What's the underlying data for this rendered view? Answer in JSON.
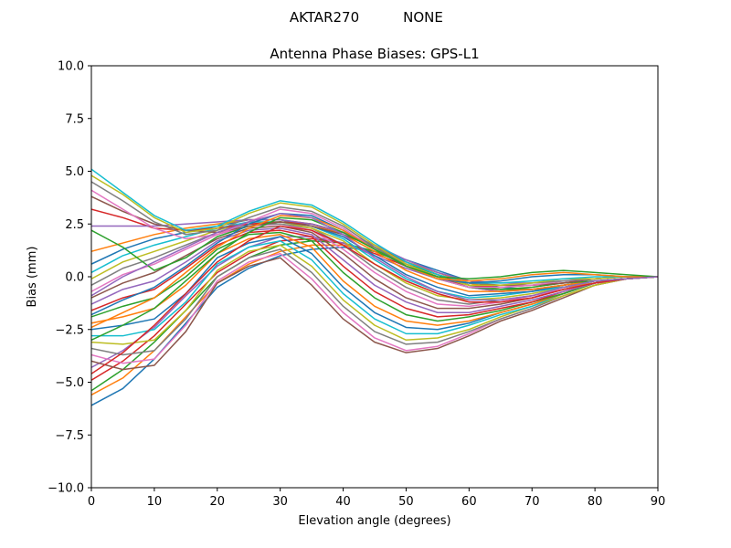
{
  "header": {
    "station": "AKTAR270",
    "radome": "NONE"
  },
  "colors": [
    "#1f77b4",
    "#ff7f0e",
    "#2ca02c",
    "#d62728",
    "#9467bd",
    "#8c564b",
    "#e377c2",
    "#7f7f7f",
    "#bcbd22",
    "#17becf"
  ],
  "chart_data": {
    "type": "line",
    "title": "Antenna Phase Biases: GPS-L1",
    "xlabel": "Elevation angle (degrees)",
    "ylabel": "Bias (mm)",
    "xlim": [
      0,
      90
    ],
    "ylim": [
      -10,
      10
    ],
    "xticks": [
      0,
      10,
      20,
      30,
      40,
      50,
      60,
      70,
      80,
      90
    ],
    "xtick_labels": [
      "0",
      "10",
      "20",
      "30",
      "40",
      "50",
      "60",
      "70",
      "80",
      "90"
    ],
    "yticks": [
      -10,
      -7.5,
      -5,
      -2.5,
      0,
      2.5,
      5,
      7.5,
      10
    ],
    "ytick_labels": [
      "−10.0",
      "−7.5",
      "−5.0",
      "−2.5",
      "0.0",
      "2.5",
      "5.0",
      "7.5",
      "10.0"
    ],
    "grid": false,
    "legend": "none",
    "x": [
      0,
      5,
      10,
      15,
      20,
      25,
      30,
      35,
      40,
      45,
      50,
      55,
      60,
      65,
      70,
      75,
      80,
      85,
      90
    ],
    "series": [
      {
        "values": [
          -6.1,
          -5.3,
          -3.9,
          -2.2,
          -0.5,
          0.4,
          1.0,
          1.3,
          1.4,
          1.2,
          0.8,
          0.3,
          -0.2,
          -0.5,
          -0.6,
          -0.5,
          -0.3,
          -0.1,
          0.0
        ]
      },
      {
        "values": [
          -5.6,
          -4.8,
          -3.5,
          -1.9,
          -0.3,
          0.6,
          1.2,
          1.5,
          1.5,
          1.2,
          0.7,
          0.2,
          -0.3,
          -0.6,
          -0.6,
          -0.5,
          -0.3,
          -0.1,
          0.0
        ]
      },
      {
        "values": [
          -5.4,
          -4.4,
          -3.1,
          -1.6,
          0.0,
          0.9,
          1.5,
          1.7,
          1.6,
          1.2,
          0.6,
          0.1,
          -0.4,
          -0.6,
          -0.6,
          -0.4,
          -0.2,
          -0.1,
          0.0
        ]
      },
      {
        "values": [
          -4.9,
          -4.0,
          -2.8,
          -1.3,
          0.2,
          1.1,
          1.7,
          1.8,
          1.6,
          1.1,
          0.5,
          0.0,
          -0.5,
          -0.7,
          -0.6,
          -0.4,
          -0.2,
          -0.1,
          0.0
        ]
      },
      {
        "values": [
          -4.3,
          -3.5,
          -2.4,
          -0.9,
          0.5,
          1.4,
          1.9,
          1.9,
          1.6,
          1.0,
          0.4,
          -0.1,
          -0.5,
          -0.7,
          -0.6,
          -0.4,
          -0.2,
          -0.1,
          0.0
        ]
      },
      {
        "values": [
          -4.0,
          -4.4,
          -4.2,
          -2.6,
          -0.3,
          0.5,
          0.9,
          -0.4,
          -2.0,
          -3.1,
          -3.6,
          -3.4,
          -2.8,
          -2.1,
          -1.6,
          -1.0,
          -0.4,
          -0.1,
          0.0
        ]
      },
      {
        "values": [
          -3.7,
          -4.1,
          -3.9,
          -2.3,
          -0.2,
          0.7,
          1.1,
          -0.1,
          -1.7,
          -2.9,
          -3.5,
          -3.3,
          -2.7,
          -2.0,
          -1.5,
          -0.9,
          -0.4,
          -0.1,
          0.0
        ]
      },
      {
        "values": [
          -3.4,
          -3.7,
          -3.5,
          -2.0,
          0.0,
          0.9,
          1.3,
          0.2,
          -1.4,
          -2.6,
          -3.2,
          -3.1,
          -2.6,
          -2.0,
          -1.5,
          -0.9,
          -0.4,
          -0.1,
          0.0
        ]
      },
      {
        "values": [
          -3.1,
          -3.2,
          -3.0,
          -1.6,
          0.3,
          1.2,
          1.5,
          0.5,
          -1.1,
          -2.3,
          -3.0,
          -2.9,
          -2.5,
          -1.9,
          -1.4,
          -0.9,
          -0.4,
          -0.1,
          0.0
        ]
      },
      {
        "values": [
          -2.8,
          -2.8,
          -2.5,
          -1.2,
          0.6,
          1.4,
          1.7,
          0.8,
          -0.8,
          -2.0,
          -2.7,
          -2.7,
          -2.3,
          -1.8,
          -1.4,
          -0.8,
          -0.3,
          -0.1,
          0.0
        ]
      },
      {
        "values": [
          -2.5,
          -2.3,
          -2.0,
          -0.8,
          0.9,
          1.6,
          1.9,
          1.1,
          -0.5,
          -1.7,
          -2.4,
          -2.5,
          -2.2,
          -1.7,
          -1.3,
          -0.8,
          -0.3,
          -0.1,
          0.0
        ]
      },
      {
        "values": [
          -2.2,
          -1.9,
          -1.5,
          -0.4,
          1.1,
          1.8,
          2.0,
          1.4,
          -0.2,
          -1.4,
          -2.1,
          -2.3,
          -2.1,
          -1.7,
          -1.3,
          -0.8,
          -0.3,
          -0.1,
          0.0
        ]
      },
      {
        "values": [
          -1.9,
          -1.4,
          -1.0,
          0.0,
          1.3,
          2.0,
          2.1,
          1.7,
          0.2,
          -1.0,
          -1.8,
          -2.1,
          -1.9,
          -1.6,
          -1.2,
          -0.8,
          -0.3,
          -0.1,
          0.0
        ]
      },
      {
        "values": [
          -1.6,
          -1.0,
          -0.6,
          0.4,
          1.5,
          2.1,
          2.2,
          1.9,
          0.5,
          -0.7,
          -1.5,
          -1.9,
          -1.8,
          -1.5,
          -1.2,
          -0.7,
          -0.3,
          -0.1,
          0.0
        ]
      },
      {
        "values": [
          -1.3,
          -0.6,
          -0.2,
          0.7,
          1.7,
          2.2,
          2.3,
          2.0,
          0.8,
          -0.4,
          -1.2,
          -1.7,
          -1.7,
          -1.4,
          -1.1,
          -0.7,
          -0.3,
          -0.1,
          0.0
        ]
      },
      {
        "values": [
          -1.0,
          -0.3,
          0.2,
          1.0,
          1.8,
          2.3,
          2.4,
          2.1,
          1.1,
          -0.1,
          -1.0,
          -1.5,
          -1.5,
          -1.3,
          -1.0,
          -0.6,
          -0.3,
          -0.1,
          0.0
        ]
      },
      {
        "values": [
          -0.7,
          0.1,
          0.6,
          1.3,
          2.0,
          2.4,
          2.5,
          2.2,
          1.3,
          0.2,
          -0.7,
          -1.3,
          -1.4,
          -1.2,
          -0.9,
          -0.6,
          -0.3,
          -0.1,
          0.0
        ]
      },
      {
        "values": [
          -0.4,
          0.4,
          0.9,
          1.5,
          2.1,
          2.5,
          2.5,
          2.3,
          1.5,
          0.4,
          -0.5,
          -1.1,
          -1.3,
          -1.1,
          -0.9,
          -0.5,
          -0.2,
          -0.1,
          0.0
        ]
      },
      {
        "values": [
          -0.1,
          0.7,
          1.2,
          1.7,
          2.2,
          2.6,
          2.6,
          2.3,
          1.7,
          0.6,
          -0.3,
          -0.9,
          -1.1,
          -1.0,
          -0.8,
          -0.5,
          -0.2,
          -0.1,
          0.0
        ]
      },
      {
        "values": [
          0.2,
          1.0,
          1.5,
          1.9,
          2.3,
          2.6,
          2.6,
          2.4,
          1.8,
          0.8,
          -0.1,
          -0.7,
          -1.0,
          -0.9,
          -0.7,
          -0.5,
          -0.2,
          -0.1,
          0.0
        ]
      },
      {
        "values": [
          0.6,
          1.3,
          1.8,
          2.1,
          2.4,
          2.7,
          2.7,
          2.4,
          1.9,
          1.0,
          0.1,
          -0.5,
          -0.9,
          -0.8,
          -0.7,
          -0.4,
          -0.2,
          -0.1,
          0.0
        ]
      },
      {
        "values": [
          1.2,
          1.6,
          2.0,
          2.3,
          2.5,
          2.7,
          2.7,
          2.5,
          2.0,
          1.2,
          0.3,
          -0.3,
          -0.7,
          -0.7,
          -0.6,
          -0.4,
          -0.2,
          -0.1,
          0.0
        ]
      },
      {
        "values": [
          2.2,
          1.4,
          0.3,
          0.9,
          1.9,
          2.4,
          2.6,
          2.5,
          2.1,
          1.4,
          0.5,
          -0.1,
          -0.5,
          -0.6,
          -0.5,
          -0.3,
          -0.2,
          -0.1,
          0.0
        ]
      },
      {
        "values": [
          3.2,
          2.8,
          2.3,
          2.2,
          2.3,
          2.5,
          2.6,
          2.5,
          2.1,
          1.5,
          0.7,
          0.1,
          -0.4,
          -0.5,
          -0.4,
          -0.3,
          -0.1,
          0.0,
          0.0
        ]
      },
      {
        "values": [
          2.4,
          2.4,
          2.4,
          2.5,
          2.6,
          2.7,
          2.7,
          2.5,
          2.1,
          1.5,
          0.8,
          0.2,
          -0.2,
          -0.3,
          -0.3,
          -0.2,
          -0.1,
          0.0,
          0.0
        ]
      },
      {
        "values": [
          3.8,
          3.1,
          2.5,
          2.2,
          2.1,
          2.4,
          2.6,
          2.4,
          2.0,
          1.4,
          0.7,
          0.1,
          -0.3,
          -0.4,
          -0.4,
          -0.3,
          -0.1,
          0.0,
          0.0
        ]
      },
      {
        "values": [
          4.1,
          3.2,
          2.3,
          1.8,
          2.0,
          2.6,
          3.2,
          3.0,
          2.3,
          1.3,
          0.5,
          -0.1,
          -0.5,
          -0.5,
          -0.4,
          -0.2,
          -0.1,
          0.0,
          0.0
        ]
      },
      {
        "values": [
          4.5,
          3.6,
          2.6,
          2.0,
          2.2,
          2.8,
          3.3,
          3.1,
          2.4,
          1.4,
          0.6,
          0.0,
          -0.4,
          -0.4,
          -0.3,
          -0.2,
          -0.1,
          0.0,
          0.0
        ]
      },
      {
        "values": [
          4.8,
          3.9,
          2.8,
          2.1,
          2.3,
          3.0,
          3.5,
          3.3,
          2.5,
          1.5,
          0.6,
          0.0,
          -0.4,
          -0.4,
          -0.3,
          -0.1,
          -0.1,
          0.0,
          0.0
        ]
      },
      {
        "values": [
          5.1,
          4.0,
          2.9,
          2.2,
          2.4,
          3.1,
          3.6,
          3.4,
          2.6,
          1.6,
          0.7,
          0.1,
          -0.3,
          -0.3,
          -0.2,
          -0.1,
          0.0,
          0.0,
          0.0
        ]
      },
      {
        "values": [
          -1.8,
          -1.1,
          -0.5,
          0.5,
          1.6,
          2.5,
          3.0,
          2.9,
          2.2,
          1.3,
          0.5,
          -0.1,
          -0.3,
          -0.2,
          0.0,
          0.1,
          0.1,
          0.0,
          0.0
        ]
      },
      {
        "values": [
          -2.4,
          -1.7,
          -1.0,
          0.2,
          1.4,
          2.3,
          2.9,
          2.8,
          2.2,
          1.3,
          0.5,
          -0.1,
          -0.2,
          -0.1,
          0.1,
          0.2,
          0.1,
          0.0,
          0.0
        ]
      },
      {
        "values": [
          -3.0,
          -2.3,
          -1.5,
          -0.2,
          1.1,
          2.1,
          2.8,
          2.7,
          2.1,
          1.3,
          0.5,
          0.0,
          -0.1,
          0.0,
          0.2,
          0.3,
          0.2,
          0.1,
          0.0
        ]
      },
      {
        "values": [
          -4.6,
          -3.6,
          -2.3,
          -0.8,
          0.7,
          1.7,
          2.4,
          2.2,
          1.5,
          0.6,
          -0.2,
          -0.8,
          -1.2,
          -1.2,
          -1.0,
          -0.6,
          -0.3,
          -0.1,
          0.0
        ]
      },
      {
        "values": [
          -0.9,
          0.0,
          0.7,
          1.4,
          2.1,
          2.6,
          3.0,
          2.8,
          2.0,
          0.9,
          0.0,
          -0.7,
          -1.1,
          -1.1,
          -0.9,
          -0.5,
          -0.2,
          -0.1,
          0.0
        ]
      }
    ]
  }
}
